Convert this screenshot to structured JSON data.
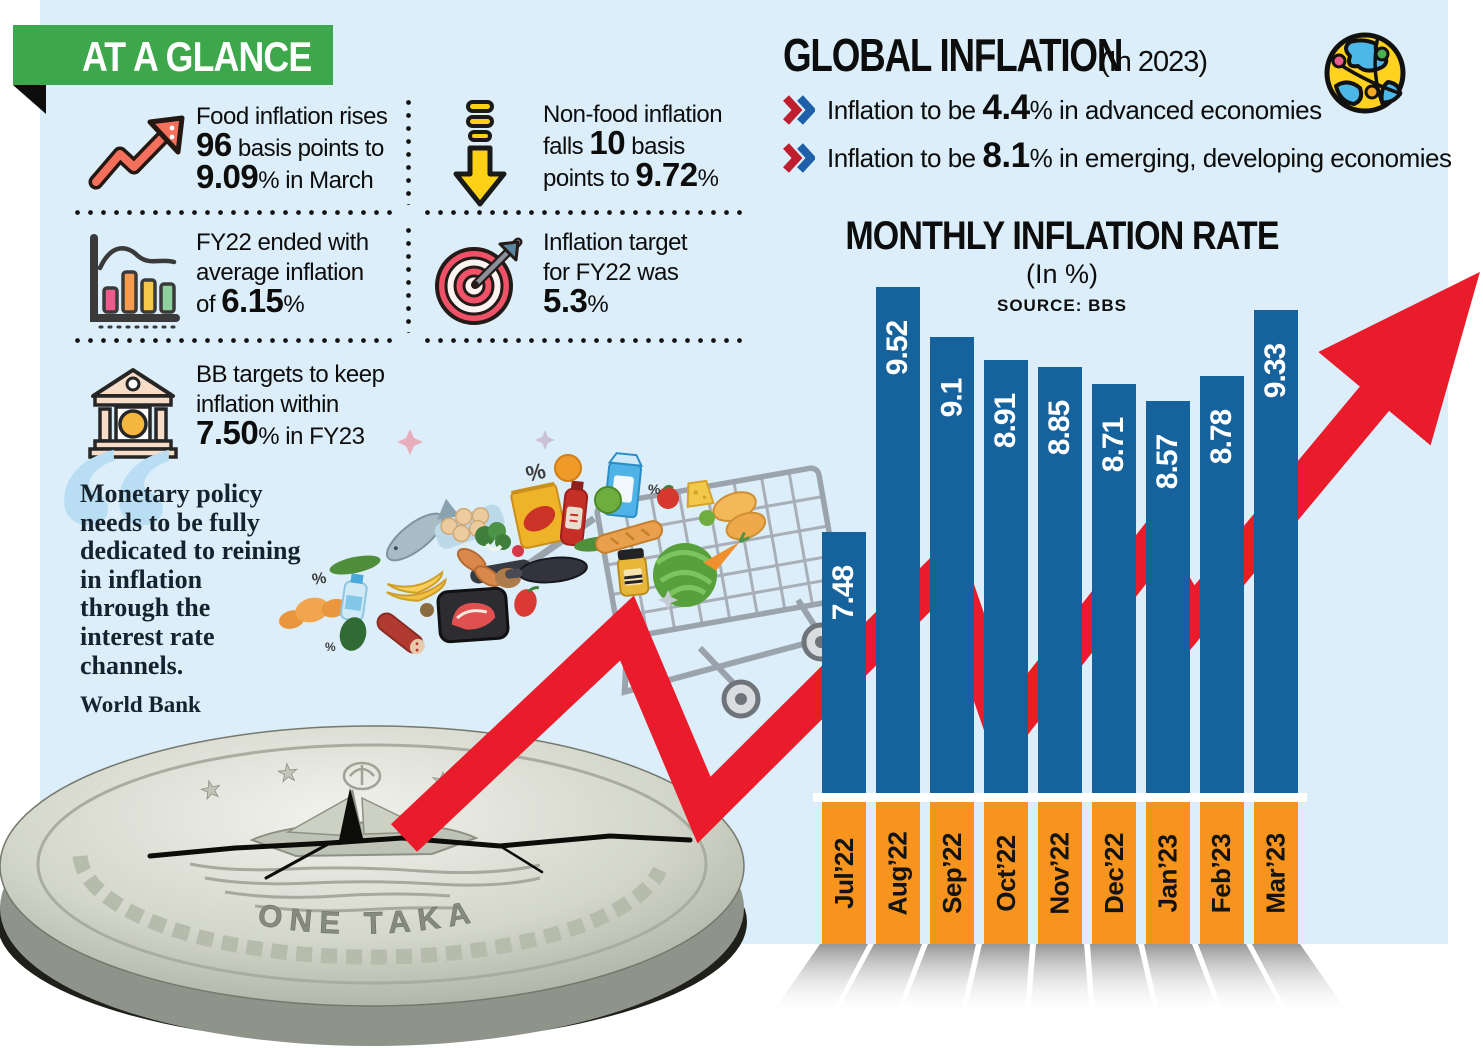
{
  "at_a_glance": {
    "title": "AT A GLANCE",
    "items": [
      {
        "icon": "trend-up-icon",
        "segments": [
          [
            "Food inflation rises\n",
            0
          ],
          [
            "96",
            1
          ],
          [
            " basis points to\n",
            0
          ],
          [
            "9.09",
            1
          ],
          [
            "% in March",
            0
          ]
        ]
      },
      {
        "icon": "arrow-down-icon",
        "segments": [
          [
            "Non-food inflation\nfalls ",
            0
          ],
          [
            "10",
            1
          ],
          [
            " basis\npoints to ",
            0
          ],
          [
            "9.72",
            1
          ],
          [
            "%",
            0
          ]
        ]
      },
      {
        "icon": "bar-chart-icon",
        "segments": [
          [
            "FY22 ended with\naverage inflation\nof ",
            0
          ],
          [
            "6.15",
            1
          ],
          [
            "%",
            0
          ]
        ]
      },
      {
        "icon": "target-icon",
        "segments": [
          [
            "Inflation target\nfor FY22 was\n",
            0
          ],
          [
            "5.3",
            1
          ],
          [
            "%",
            0
          ]
        ]
      },
      {
        "icon": "bank-icon",
        "segments": [
          [
            "BB targets to keep\ninflation within\n",
            0
          ],
          [
            "7.50",
            1
          ],
          [
            "% in FY23",
            0
          ]
        ]
      }
    ]
  },
  "quote": {
    "text": "Monetary policy\nneeds to be fully\ndedicated to reining\nin inflation\nthrough the\ninterest rate\nchannels.",
    "attribution": "World Bank"
  },
  "global_inflation": {
    "title": "GLOBAL INFLATION",
    "subtitle": "(In 2023)",
    "bullets": [
      {
        "segments": [
          [
            "Inflation to be ",
            0
          ],
          [
            "4.4",
            1
          ],
          [
            "% in advanced economies",
            0
          ]
        ]
      },
      {
        "segments": [
          [
            "Inflation to be ",
            0
          ],
          [
            "8.1",
            1
          ],
          [
            "% in emerging, developing economies",
            0
          ]
        ]
      }
    ]
  },
  "chart_data": {
    "type": "bar",
    "title": "MONTHLY INFLATION RATE",
    "subtitle": "(In %)",
    "source": "SOURCE: BBS",
    "categories": [
      "Jul’22",
      "Aug’22",
      "Sep’22",
      "Oct’22",
      "Nov’22",
      "Dec’22",
      "Jan’23",
      "Feb’23",
      "Mar’23"
    ],
    "values": [
      7.48,
      9.52,
      9.1,
      8.91,
      8.85,
      8.71,
      8.57,
      8.78,
      9.33
    ],
    "value_labels": [
      "7.48",
      "9.52",
      "9.1",
      "8.91",
      "8.85",
      "8.71",
      "8.57",
      "8.78",
      "9.33"
    ],
    "xlabel": "",
    "ylabel": "",
    "ylim": [
      5.3,
      10.0
    ],
    "grid": false,
    "legend": "none",
    "bar_color": "#15629c",
    "category_color": "#f7941e",
    "arrow_color": "#ea1c2c"
  },
  "coin": {
    "engraving": "ONE TAKA"
  },
  "decor": {
    "percent": [
      "%",
      "%",
      "%",
      "%"
    ]
  },
  "colors": {
    "panel": "#dceef9",
    "ribbon_green": "#3ca84b",
    "red": "#ea1c2c",
    "chevron_red": "#bf1e2e",
    "chevron_blue": "#1d5fa8",
    "quote_mark": "#b9ddf3"
  }
}
